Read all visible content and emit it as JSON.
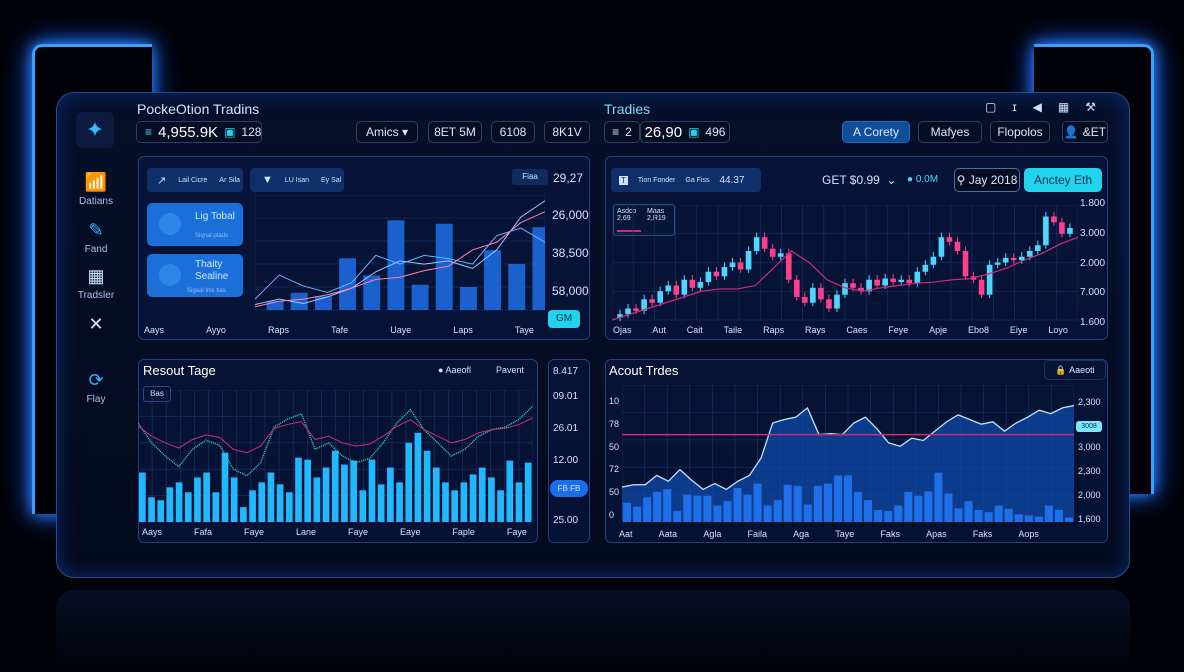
{
  "colors": {
    "accent": "#2f8cff",
    "cyan": "#22d3ee",
    "up": "#4fd6ff",
    "down": "#ff3f8e",
    "ma": "#d02a78",
    "bar": "#1f6fe8",
    "bar_bright": "#22b8ff"
  },
  "header": {
    "app_title": "PockeOtion Tradins",
    "balance": "4,955.9K",
    "balance_badge": "128",
    "dropdown": "Amics",
    "stat1": "8ET 5M",
    "stat2": "6108",
    "stat3": "8K1V",
    "right_title": "Tradies",
    "count": "2",
    "price": "26,90",
    "price_badge": "496",
    "tabs": [
      "A Corety",
      "Mafyes",
      "Flopolos"
    ],
    "user_label": "&ET",
    "icons": [
      "document-icon",
      "info-icon",
      "speaker-icon",
      "calendar-icon",
      "tools-icon"
    ]
  },
  "sidebar": {
    "items": [
      {
        "label": "Datians",
        "icon": "chart-icon"
      },
      {
        "label": "Fand",
        "icon": "edit-icon"
      },
      {
        "label": "Tradsler",
        "icon": "grid-icon"
      },
      {
        "label": "",
        "icon": "close-icon"
      },
      {
        "label": "Flay",
        "icon": "refresh-icon"
      }
    ]
  },
  "panel_tl": {
    "chip1": [
      "Lail Cicre",
      "Ar Sila"
    ],
    "chip2": [
      "LU Isan",
      "Ey Sal"
    ],
    "top_badge": "Fiaa",
    "top_value": "29,27",
    "card1": {
      "title": "Lig Tobal",
      "sub": "Siqnal ptads"
    },
    "card2": {
      "title": "Thaity Sealine",
      "sub": "Sigaal Inis tlas"
    },
    "y_labels": [
      "26,000",
      "38,500",
      "58,000"
    ],
    "x_labels": [
      "Aays",
      "Ayyo",
      "Raps",
      "Tafe",
      "Uaye",
      "Laps",
      "Taye"
    ],
    "button": "GM"
  },
  "panel_tr": {
    "chip": [
      "Tion Fonder",
      "Ga Fiss"
    ],
    "chip_value": "44.37",
    "pair": "GET $0.99",
    "live": "0.0M",
    "date_button": "Jay 2018",
    "action_button": "Anctey Eth",
    "legend": [
      "Asdco 2,69",
      "Maas 2,R19"
    ],
    "y_labels": [
      "1.800",
      "3.000",
      "2.000",
      "7.000",
      "1.600"
    ],
    "x_labels": [
      "Ojas",
      "Aut",
      "Cait",
      "Taile",
      "Raps",
      "Rays",
      "Caes",
      "Feye",
      "Apje",
      "Ebo8",
      "Eiye",
      "Loyo"
    ]
  },
  "panel_bl": {
    "title": "Resout Tage",
    "legend1": "Aaeofl",
    "legend2": "Pavent",
    "tag": "Bas",
    "x_labels": [
      "Aays",
      "Fafa",
      "Faye",
      "Lane",
      "Faye",
      "Eaye",
      "Faple",
      "Faye"
    ]
  },
  "mini_scale": {
    "labels": [
      "8.417",
      "09.01",
      "26.01",
      "12.00",
      "25.00"
    ],
    "button": "FB FB"
  },
  "panel_br": {
    "title": "Acout Trdes",
    "button": "Aaeoti",
    "y_left": [
      "10",
      "78",
      "50",
      "72",
      "50",
      "0"
    ],
    "y_right": [
      "2,300",
      "3,000",
      "2,300",
      "2,000",
      "1,600"
    ],
    "price_tag": "3008",
    "x_labels": [
      "Aat",
      "Aata",
      "Agla",
      "Faila",
      "Aga",
      "Taye",
      "Faks",
      "Apas",
      "Faks",
      "Aops"
    ]
  },
  "chart_data": [
    {
      "type": "bar",
      "name_ref": "panel_tl",
      "values": [
        0.08,
        0.15,
        0.12,
        0.45,
        0.3,
        0.78,
        0.22,
        0.75,
        0.2,
        0.52,
        0.4,
        0.72
      ],
      "series": [
        {
          "values": [
            0.05,
            0.1,
            0.06,
            0.12,
            0.2,
            0.35,
            0.45,
            0.42,
            0.45,
            0.38,
            0.55,
            0.85,
            1.0
          ]
        },
        {
          "values": [
            0.1,
            0.32,
            0.22,
            0.16,
            0.25,
            0.5,
            0.42,
            0.5,
            0.47,
            0.42,
            0.68,
            0.75,
            0.62
          ]
        },
        {
          "values": [
            0.03,
            0.08,
            0.1,
            0.14,
            0.2,
            0.28,
            0.3,
            0.36,
            0.4,
            0.55,
            0.62,
            0.8,
            0.9
          ]
        }
      ]
    },
    {
      "type": "candlestick",
      "name_ref": "panel_tr",
      "close": [
        0.02,
        0.05,
        0.1,
        0.08,
        0.18,
        0.15,
        0.25,
        0.3,
        0.22,
        0.35,
        0.28,
        0.33,
        0.42,
        0.38,
        0.46,
        0.5,
        0.44,
        0.6,
        0.72,
        0.62,
        0.55,
        0.58,
        0.35,
        0.2,
        0.15,
        0.28,
        0.18,
        0.1,
        0.22,
        0.32,
        0.28,
        0.25,
        0.35,
        0.3,
        0.36,
        0.33,
        0.35,
        0.32,
        0.42,
        0.48,
        0.55,
        0.72,
        0.68,
        0.6,
        0.38,
        0.35,
        0.22,
        0.48,
        0.5,
        0.54,
        0.52,
        0.55,
        0.6,
        0.65,
        0.9,
        0.85,
        0.75,
        0.8
      ],
      "ma": [
        0.0,
        0.05,
        0.1,
        0.15,
        0.2,
        0.25,
        0.27,
        0.27,
        0.3,
        0.45,
        0.6,
        0.5,
        0.35,
        0.28,
        0.25,
        0.28,
        0.3,
        0.32,
        0.33,
        0.35,
        0.36,
        0.4,
        0.45,
        0.52,
        0.58,
        0.66,
        0.72
      ]
    },
    {
      "type": "bar",
      "name_ref": "panel_bl",
      "values": [
        0.5,
        0.25,
        0.22,
        0.35,
        0.4,
        0.3,
        0.45,
        0.5,
        0.3,
        0.7,
        0.45,
        0.15,
        0.32,
        0.4,
        0.5,
        0.38,
        0.3,
        0.65,
        0.63,
        0.45,
        0.55,
        0.72,
        0.58,
        0.62,
        0.32,
        0.63,
        0.38,
        0.55,
        0.4,
        0.8,
        0.9,
        0.72,
        0.55,
        0.4,
        0.32,
        0.4,
        0.48,
        0.55,
        0.45,
        0.32,
        0.62,
        0.4,
        0.6
      ],
      "price": [
        0.75,
        0.6,
        0.5,
        0.42,
        0.55,
        0.62,
        0.58,
        0.4,
        0.35,
        0.45,
        0.72,
        0.78,
        0.82,
        0.55,
        0.6,
        0.5,
        0.45,
        0.48,
        0.6,
        0.75,
        0.85,
        0.7,
        0.6,
        0.5,
        0.55,
        0.65,
        0.7,
        0.72,
        0.78,
        0.88
      ]
    },
    {
      "type": "area",
      "name_ref": "panel_br",
      "values": [
        0.3,
        0.32,
        0.32,
        0.4,
        0.35,
        0.45,
        0.36,
        0.28,
        0.33,
        0.28,
        0.35,
        0.4,
        0.55,
        0.85,
        0.88,
        0.9,
        0.98,
        0.75,
        0.76,
        0.75,
        0.85,
        0.9,
        0.8,
        0.68,
        0.65,
        0.72,
        0.7,
        0.78,
        0.86,
        0.92,
        0.88,
        0.84,
        0.86,
        0.78,
        0.85,
        0.9,
        0.96,
        0.93,
        0.98,
        1.0
      ],
      "bars": [
        0.35,
        0.28,
        0.45,
        0.55,
        0.6,
        0.2,
        0.5,
        0.48,
        0.48,
        0.3,
        0.38,
        0.62,
        0.5,
        0.7,
        0.3,
        0.4,
        0.68,
        0.66,
        0.32,
        0.66,
        0.7,
        0.85,
        0.85,
        0.55,
        0.4,
        0.22,
        0.2,
        0.3,
        0.55,
        0.48,
        0.56,
        0.9,
        0.52,
        0.25,
        0.38,
        0.22,
        0.18,
        0.3,
        0.24,
        0.14,
        0.12,
        0.1,
        0.3,
        0.22,
        0.08
      ],
      "reference_level": 0.75
    }
  ]
}
